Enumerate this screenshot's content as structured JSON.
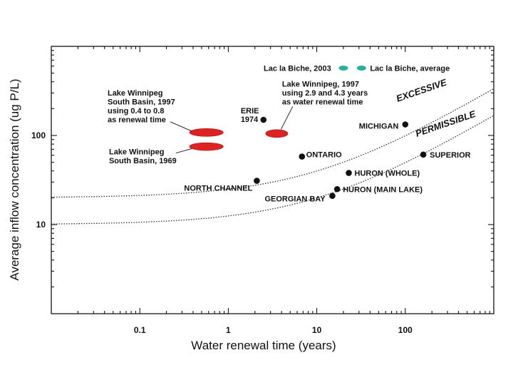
{
  "chart_data": {
    "type": "scatter",
    "title": "",
    "xlabel": "Water renewal time (years)",
    "ylabel": "Average inflow concentration (ug P/L)",
    "x_scale": "log",
    "y_scale": "log",
    "xlim": [
      0.01,
      1000
    ],
    "ylim": [
      1,
      1000
    ],
    "x_tick_labels": [
      "0.1",
      "1",
      "10",
      "100"
    ],
    "y_tick_labels": [
      "10",
      "100"
    ],
    "grid": false,
    "points": [
      {
        "label": "ERIE\n1974",
        "x": 2.5,
        "y": 150,
        "marker": "dot"
      },
      {
        "label": "ONTARIO",
        "x": 6.8,
        "y": 58,
        "marker": "dot"
      },
      {
        "label": "MICHIGAN",
        "x": 100,
        "y": 133,
        "marker": "dot"
      },
      {
        "label": "SUPERIOR",
        "x": 160,
        "y": 61,
        "marker": "dot"
      },
      {
        "label": "HURON (WHOLE)",
        "x": 23,
        "y": 38,
        "marker": "dot"
      },
      {
        "label": "HURON (MAIN LAKE)",
        "x": 17,
        "y": 25,
        "marker": "dot"
      },
      {
        "label": "GEORGIAN BAY",
        "x": 15,
        "y": 21,
        "marker": "dot"
      },
      {
        "label": "NORTH CHANNEL",
        "x": 2.1,
        "y": 31,
        "marker": "dot"
      },
      {
        "label": "Lac la Biche, 2003",
        "x": 20,
        "y": 570,
        "marker": "teal-ellipse"
      },
      {
        "label": "Lac la Biche, average",
        "x": 32,
        "y": 570,
        "marker": "teal-ellipse"
      }
    ],
    "ranges": [
      {
        "label": "Lake Winnipeg\nSouth Basin, 1997\nusing 0.4 to 0.8\nas renewal time",
        "x": [
          0.4,
          0.8
        ],
        "y": 108
      },
      {
        "label": "Lake Winnipeg\nSouth Basin, 1969",
        "x": [
          0.4,
          0.8
        ],
        "y": 75
      },
      {
        "label": "Lake Winnipeg, 1997\nusing 2.9 and 4.3 years\nas water renewal time",
        "x": [
          2.9,
          4.3
        ],
        "y": 105
      }
    ],
    "curves": [
      {
        "name": "EXCESSIVE",
        "a": 20,
        "b": 0.6
      },
      {
        "name": "PERMISSIBLE",
        "a": 10,
        "b": 0.6
      }
    ],
    "colors": {
      "dot": "#111111",
      "red": "#dd2222",
      "teal": "#2ab09a",
      "curve": "#333333",
      "axis": "#000000"
    }
  }
}
